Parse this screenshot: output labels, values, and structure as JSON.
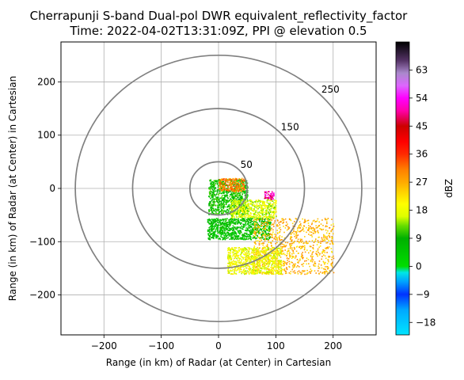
{
  "chart_data": {
    "type": "heatmap",
    "title_line1": "Cherrapunji S-band Dual-pol DWR equivalent_reflectivity_factor",
    "title_line2": "Time: 2022-04-02T13:31:09Z, PPI @ elevation 0.5",
    "xlabel": "Range (in km) of Radar (at Center) in Cartesian",
    "ylabel": "Range (in km) of Radar (at Center) in Cartesian",
    "xlim": [
      -275,
      275
    ],
    "ylim": [
      -275,
      275
    ],
    "xticks": [
      -200,
      -100,
      0,
      100,
      200
    ],
    "yticks": [
      -200,
      -100,
      0,
      100,
      200
    ],
    "xtick_labels": [
      "−200",
      "−100",
      "0",
      "100",
      "200"
    ],
    "ytick_labels": [
      "−200",
      "−100",
      "0",
      "100",
      "200"
    ],
    "grid": true,
    "range_rings": [
      {
        "radius_km": 50,
        "label": "50"
      },
      {
        "radius_km": 150,
        "label": "150"
      },
      {
        "radius_km": 250,
        "label": "250"
      }
    ],
    "colorbar": {
      "label": "dBZ",
      "vmin": -22,
      "vmax": 72,
      "ticks": [
        -18,
        -9,
        0,
        9,
        18,
        27,
        36,
        45,
        54,
        63
      ],
      "tick_labels": [
        "−18",
        "−9",
        "0",
        "9",
        "18",
        "27",
        "36",
        "45",
        "54",
        "63"
      ],
      "stops": [
        [
          -22,
          "#00e5ff"
        ],
        [
          -14,
          "#00a8ff"
        ],
        [
          -9,
          "#0033ff"
        ],
        [
          -5,
          "#00a0ff"
        ],
        [
          -2,
          "#00e6e6"
        ],
        [
          0,
          "#00dd00"
        ],
        [
          9,
          "#00b000"
        ],
        [
          13,
          "#66dd00"
        ],
        [
          16,
          "#ddff00"
        ],
        [
          20,
          "#ffff00"
        ],
        [
          24,
          "#ffd000"
        ],
        [
          27,
          "#ffaa00"
        ],
        [
          31,
          "#ff8000"
        ],
        [
          36,
          "#ff2a00"
        ],
        [
          40,
          "#ff0000"
        ],
        [
          45,
          "#cc0000"
        ],
        [
          50,
          "#ff00aa"
        ],
        [
          54,
          "#ff00ff"
        ],
        [
          58,
          "#dd66ff"
        ],
        [
          62,
          "#aa88cc"
        ],
        [
          66,
          "#553366"
        ],
        [
          72,
          "#000000"
        ]
      ]
    },
    "echo_regions": [
      {
        "name": "main-green-cluster",
        "x_km": [
          -18,
          50
        ],
        "y_km": [
          -48,
          18
        ],
        "dbz": 8
      },
      {
        "name": "north-edge-strong",
        "x_km": [
          0,
          45
        ],
        "y_km": [
          -5,
          20
        ],
        "dbz": 30
      },
      {
        "name": "east-core-magenta",
        "x_km": [
          78,
          96
        ],
        "y_km": [
          -20,
          -5
        ],
        "dbz": 50
      },
      {
        "name": "yellow-band",
        "x_km": [
          20,
          100
        ],
        "y_km": [
          -55,
          -20
        ],
        "dbz": 17
      },
      {
        "name": "southern-scatter-green",
        "x_km": [
          -20,
          90
        ],
        "y_km": [
          -95,
          -55
        ],
        "dbz": 6
      },
      {
        "name": "southeast-streaks-orange",
        "x_km": [
          60,
          200
        ],
        "y_km": [
          -160,
          -55
        ],
        "dbz": 26
      },
      {
        "name": "south-yellow-patches",
        "x_km": [
          15,
          110
        ],
        "y_km": [
          -160,
          -110
        ],
        "dbz": 19
      }
    ]
  }
}
